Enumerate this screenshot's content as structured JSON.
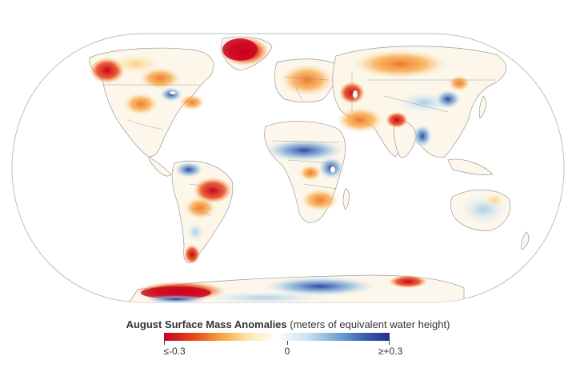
{
  "legend": {
    "title_bold": "August Surface Mass Anomalies",
    "title_rest": " (meters of equivalent water height)",
    "ticks": [
      {
        "label": "≤-0.3",
        "value": -0.3
      },
      {
        "label": "0",
        "value": 0
      },
      {
        "label": "≥+0.3",
        "value": 0.3
      }
    ],
    "colors": [
      "#c8001e",
      "#e8441a",
      "#f7a23c",
      "#fde8b8",
      "#ffffff",
      "#cfe3f0",
      "#7fb0d8",
      "#3a63b3",
      "#232e8c"
    ]
  },
  "map": {
    "projection": "equal-earth",
    "land_color": "#ffffff",
    "border_color": "#9a9a9a"
  }
}
